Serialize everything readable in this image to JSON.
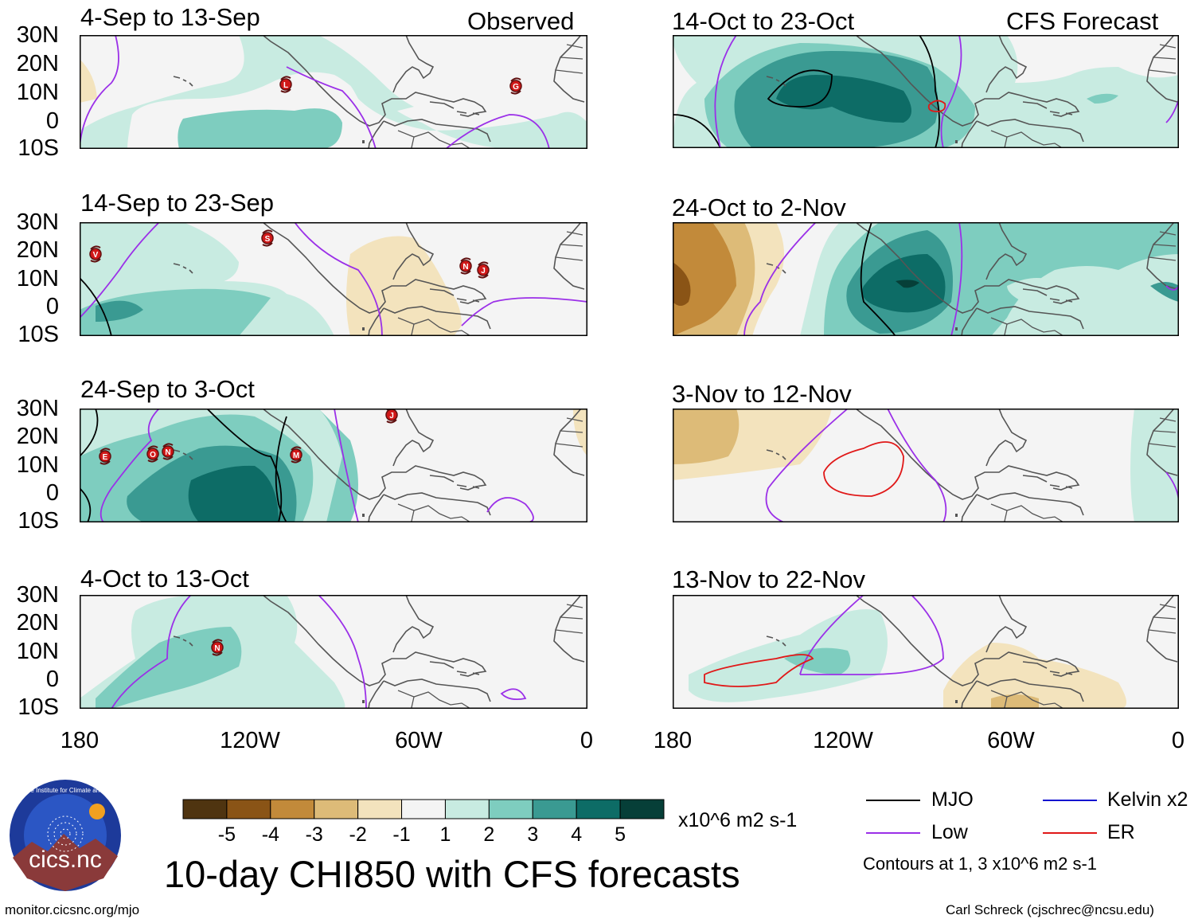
{
  "section_labels": {
    "observed": "Observed",
    "forecast": "CFS Forecast"
  },
  "panels": [
    {
      "title": "4-Sep to 13-Sep",
      "kind": "observed",
      "storms": [
        "L",
        "G"
      ]
    },
    {
      "title": "14-Sep to 23-Sep",
      "kind": "observed",
      "storms": [
        "V",
        "S",
        "N",
        "J"
      ]
    },
    {
      "title": "24-Sep to 3-Oct",
      "kind": "observed",
      "storms": [
        "J",
        "E",
        "O",
        "N",
        "M"
      ]
    },
    {
      "title": "4-Oct to 13-Oct",
      "kind": "observed",
      "storms": [
        "N"
      ]
    },
    {
      "title": "14-Oct to 23-Oct",
      "kind": "forecast",
      "storms": []
    },
    {
      "title": "24-Oct to 2-Nov",
      "kind": "forecast",
      "storms": []
    },
    {
      "title": "3-Nov to 12-Nov",
      "kind": "forecast",
      "storms": []
    },
    {
      "title": "13-Nov to 22-Nov",
      "kind": "forecast",
      "storms": []
    }
  ],
  "y_axis": [
    "30N",
    "20N",
    "10N",
    "0",
    "10S"
  ],
  "x_axis": [
    "180",
    "120W",
    "60W",
    "0"
  ],
  "colorbar": {
    "ticks": [
      "-5",
      "-4",
      "-3",
      "-2",
      "-1",
      "1",
      "2",
      "3",
      "4",
      "5"
    ],
    "colors": [
      "#4f3410",
      "#8a5416",
      "#c28a3a",
      "#ddbb78",
      "#f3e3bd",
      "#f4f4f4",
      "#c8ebe1",
      "#7ecdbf",
      "#3a9a92",
      "#0d6c66",
      "#063f38"
    ],
    "units": "x10^6 m2 s-1"
  },
  "title": "10-day CHI850 with CFS forecasts",
  "legend": [
    {
      "label": "MJO",
      "color": "#000000"
    },
    {
      "label": "Kelvin x2",
      "color": "#1010d0"
    },
    {
      "label": "Low",
      "color": "#9b30e8"
    },
    {
      "label": "ER",
      "color": "#e01818"
    }
  ],
  "contours_note": "Contours at 1, 3 x10^6 m2 s-1",
  "logo_text": "cics.nc",
  "logo_ring_text": "Cooperative Institute for Climate and Satellites",
  "footer_left": "monitor.cicsnc.org/mjo",
  "footer_right": "Carl Schreck (cjschrec@ncsu.edu)"
}
